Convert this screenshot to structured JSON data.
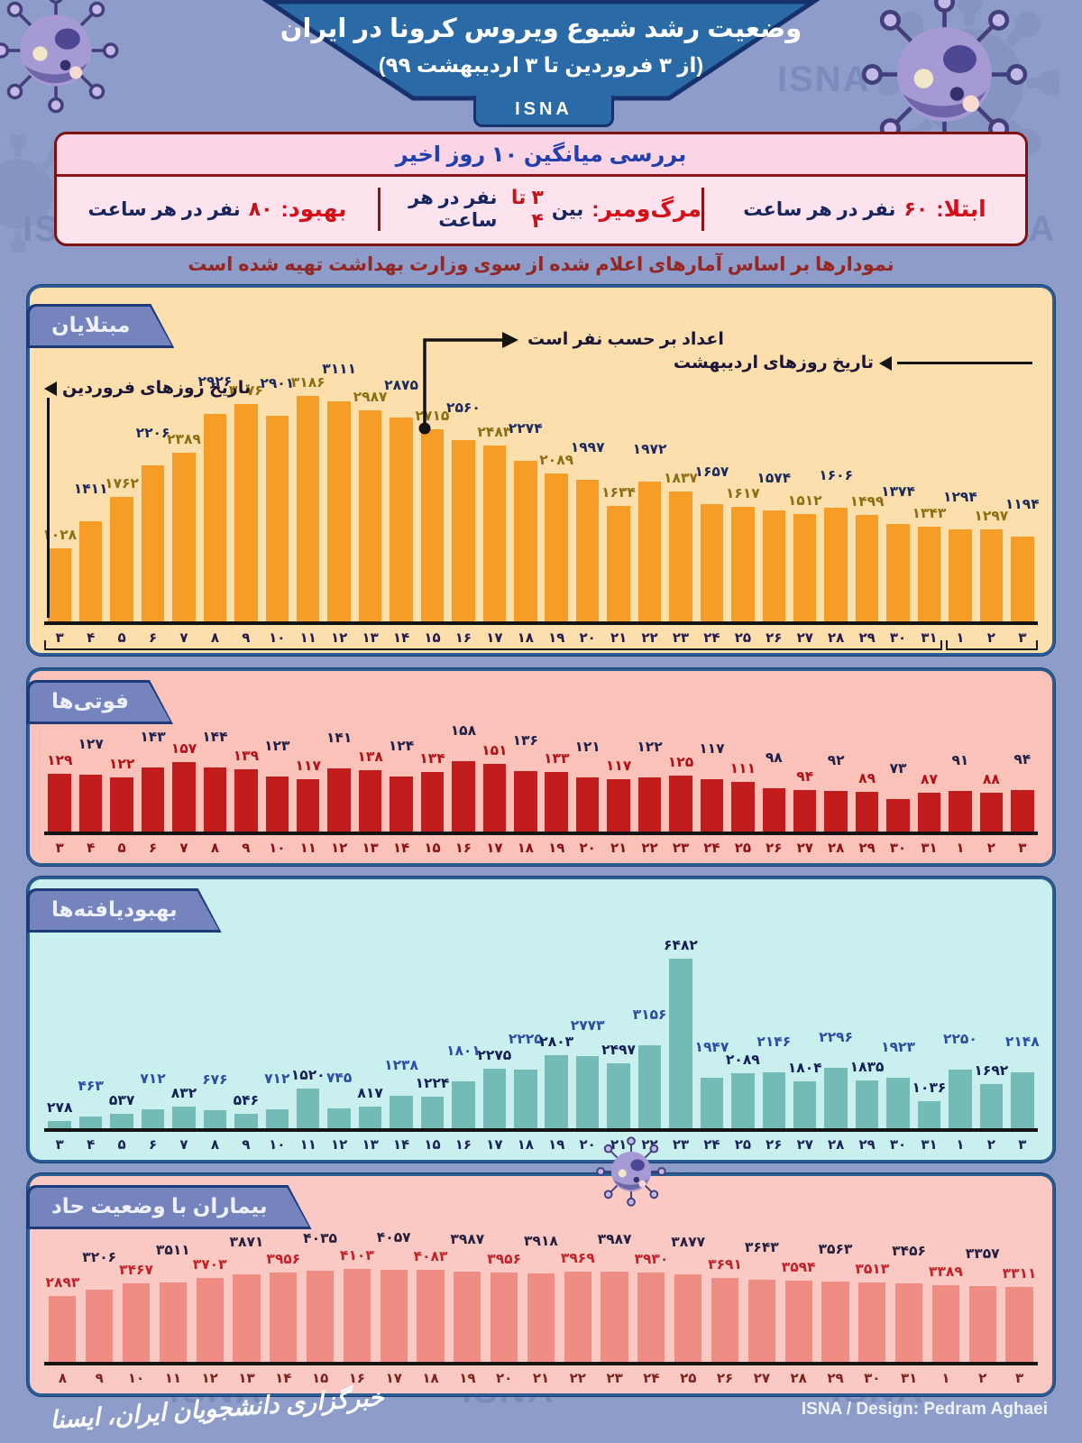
{
  "watermark": "ISNA",
  "header": {
    "title": "وضعیت رشد شیوع ویروس کرونا در ایران",
    "subtitle": "(از ۳ فروردین تا ۳ اردیبهشت ۹۹)",
    "brand": "ISNA"
  },
  "summary": {
    "title": "بررسی میانگین ۱۰ روز اخیر",
    "items": [
      {
        "label": "ابتلا:",
        "value_prefix": "",
        "value_num": "۶۰",
        "value_rest": "نفر در هر ساعت"
      },
      {
        "label": "مرگ‌ومیر:",
        "value_prefix": "بین",
        "value_num": "۳ تا ۴",
        "value_rest": "نفر در هر ساعت"
      },
      {
        "label": "بهبود:",
        "value_prefix": "",
        "value_num": "۸۰",
        "value_rest": "نفر در هر ساعت"
      }
    ]
  },
  "note": "نمودارها بر اساس آمارهای اعلام شده از سوی وزارت بهداشت تهیه شده است",
  "chart_data": [
    {
      "type": "bar",
      "id": "infected",
      "title": "مبتلایان",
      "annotations": {
        "farvardin": "تاریخ روزهای فروردین",
        "unit": "اعداد بر حسب نفر است",
        "ordibehesht": "تاریخ روزهای اردیبهشت"
      },
      "categories": [
        3,
        4,
        5,
        6,
        7,
        8,
        9,
        10,
        11,
        12,
        13,
        14,
        15,
        16,
        17,
        18,
        19,
        20,
        21,
        22,
        23,
        24,
        25,
        26,
        27,
        28,
        29,
        30,
        31,
        1,
        2,
        3
      ],
      "month_split_index": 29,
      "values": [
        1028,
        1411,
        1762,
        2206,
        2389,
        2926,
        3076,
        2901,
        3186,
        3111,
        2987,
        2875,
        2715,
        2560,
        2483,
        2274,
        2089,
        1997,
        1634,
        1972,
        1837,
        1657,
        1617,
        1574,
        1512,
        1606,
        1499,
        1374,
        1343,
        1294,
        1297,
        1194
      ],
      "stagger": 26,
      "colors": {
        "panel_bg": "#fcdfad",
        "bar": "#f69c27",
        "label_a": "#8d6c12",
        "label_b": "#1b2a5e",
        "axis": "#241a4e"
      }
    },
    {
      "type": "bar",
      "id": "deaths",
      "title": "فوتی‌ها",
      "categories": [
        3,
        4,
        5,
        6,
        7,
        8,
        9,
        10,
        11,
        12,
        13,
        14,
        15,
        16,
        17,
        18,
        19,
        20,
        21,
        22,
        23,
        24,
        25,
        26,
        27,
        28,
        29,
        30,
        31,
        1,
        2,
        3
      ],
      "month_split_index": 29,
      "values": [
        129,
        127,
        122,
        143,
        157,
        144,
        139,
        123,
        117,
        141,
        138,
        124,
        134,
        158,
        151,
        136,
        133,
        121,
        117,
        122,
        125,
        117,
        111,
        98,
        94,
        92,
        89,
        73,
        87,
        91,
        88,
        94
      ],
      "stagger": 24,
      "colors": {
        "panel_bg": "#fac2b9",
        "bar": "#c11d1d",
        "label_a": "#b01217",
        "label_b": "#1f2048",
        "axis": "#8c1117"
      }
    },
    {
      "type": "bar",
      "id": "recovered",
      "title": "بهبودیافته‌ها",
      "categories": [
        3,
        4,
        5,
        6,
        7,
        8,
        9,
        10,
        11,
        12,
        13,
        14,
        15,
        16,
        17,
        18,
        19,
        20,
        21,
        22,
        23,
        24,
        25,
        26,
        27,
        28,
        29,
        30,
        31,
        1,
        2,
        3
      ],
      "month_split_index": 29,
      "values": [
        278,
        463,
        537,
        712,
        832,
        676,
        546,
        712,
        1520,
        745,
        817,
        1238,
        1224,
        1801,
        2275,
        2225,
        2803,
        2773,
        2497,
        3156,
        6482,
        1947,
        2089,
        2146,
        1804,
        2296,
        1835,
        1923,
        1036,
        2250,
        1692,
        2148
      ],
      "stagger": 24,
      "colors": {
        "panel_bg": "#c9f0ee",
        "bar": "#74bab6",
        "label_a": "#131f56",
        "label_b": "#2c4da4",
        "axis": "#1a2458"
      }
    },
    {
      "type": "bar",
      "id": "critical",
      "title": "بیماران با وضعیت حاد",
      "categories": [
        8,
        9,
        10,
        11,
        12,
        13,
        14,
        15,
        16,
        17,
        18,
        19,
        20,
        21,
        22,
        23,
        24,
        25,
        26,
        27,
        28,
        29,
        30,
        31,
        1,
        2,
        3
      ],
      "month_split_index": 24,
      "values": [
        2893,
        3206,
        3467,
        3511,
        3703,
        3871,
        3956,
        4035,
        4103,
        4057,
        4083,
        3987,
        3956,
        3918,
        3969,
        3987,
        3930,
        3877,
        3691,
        3643,
        3594,
        3563,
        3513,
        3456,
        3389,
        3357,
        3311
      ],
      "stagger": 26,
      "colors": {
        "panel_bg": "#fbc9c3",
        "bar": "#ef8d85",
        "label_a": "#c2232a",
        "label_b": "#241f3e",
        "axis": "#7c231d"
      }
    }
  ],
  "footer": {
    "left": "خبرگزاری دانشجویان ایران، ایسنا",
    "right": "ISNA / Design: Pedram Aghaei"
  },
  "theme": {
    "page_bg": "#8d9cc9",
    "header_blue": "#2a6aa7",
    "header_border": "#16316b",
    "summary_border": "#7e1212",
    "summary_title_color": "#2140ad",
    "red_accent": "#d40f18",
    "navy_accent": "#17265e"
  }
}
